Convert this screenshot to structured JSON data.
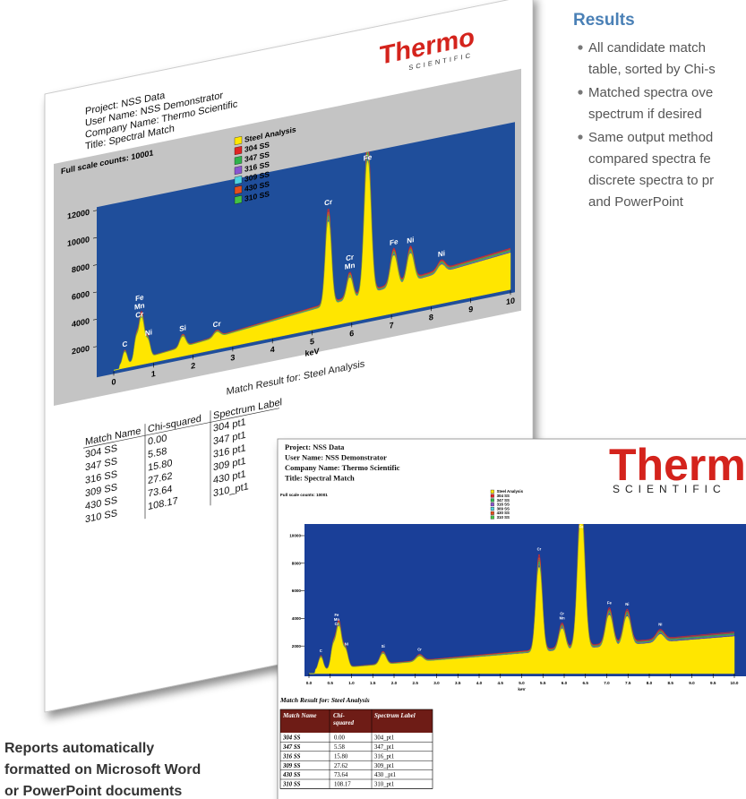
{
  "results": {
    "title": "Results",
    "bullets": [
      [
        "All candidate match",
        "table, sorted by Chi-s"
      ],
      [
        "Matched spectra ove",
        "spectrum if desired"
      ],
      [
        "Same output method",
        "compared spectra fe",
        "discrete spectra to pr",
        "and PowerPoint"
      ]
    ]
  },
  "caption": [
    "Reports automatically",
    "formatted on Microsoft Word",
    "or PowerPoint documents"
  ],
  "report_1": {
    "logo": "Thermo",
    "logo_sub": "SCIENTIFIC",
    "header": [
      "Project: NSS Data",
      "User Name: NSS Demonstrator",
      "Company Name: Thermo Scientific",
      "Title: Spectral Match"
    ],
    "chart": {
      "full_scale": "Full scale counts: 10001",
      "legend": [
        {
          "name": "Steel Analysis",
          "color": "#ffe600"
        },
        {
          "name": "304 SS",
          "color": "#e02424"
        },
        {
          "name": "347 SS",
          "color": "#2fb24c"
        },
        {
          "name": "316 SS",
          "color": "#8a55d0"
        },
        {
          "name": "309 SS",
          "color": "#4fd2e0"
        },
        {
          "name": "430 SS",
          "color": "#e4501e"
        },
        {
          "name": "310 SS",
          "color": "#44c244"
        }
      ],
      "yticks": [
        2000,
        4000,
        6000,
        8000,
        10000,
        12000
      ],
      "xticks": [
        0,
        1,
        2,
        3,
        4,
        5,
        6,
        7,
        8,
        9,
        10
      ],
      "xlabel": "keV",
      "peak_labels": [
        "C",
        "Cr",
        "Mn",
        "Fe",
        "Ni",
        "Si",
        "Cr",
        "Cr",
        "Cr",
        "Mn",
        "Fe",
        "Fe",
        "Ni",
        "Ni"
      ]
    },
    "match_title": "Match Result for: Steel Analysis",
    "table": {
      "columns": [
        "Match Name",
        "Chi-squared",
        "Spectrum Label"
      ],
      "rows": [
        [
          "304 SS",
          "0.00",
          "304 pt1"
        ],
        [
          "347 SS",
          "5.58",
          "347 pt1"
        ],
        [
          "316 SS",
          "15.80",
          "316 pt1"
        ],
        [
          "309 SS",
          "27.62",
          "309 pt1"
        ],
        [
          "430 SS",
          "73.64",
          "430 pt1"
        ],
        [
          "310 SS",
          "108.17",
          "310_pt1"
        ]
      ]
    }
  },
  "report_2": {
    "logo": "Thermo",
    "logo_sub": "SCIENTIFIC",
    "header": [
      "Project: NSS Data",
      "User Name: NSS Demonstrator",
      "Company Name: Thermo Scientific",
      "Title: Spectral Match"
    ],
    "chart": {
      "full_scale": "Full scale counts: 10001",
      "legend": [
        {
          "name": "Steel Analysis",
          "color": "#ffe600"
        },
        {
          "name": "304 SS",
          "color": "#e02424"
        },
        {
          "name": "347 SS",
          "color": "#2fb24c"
        },
        {
          "name": "316 SS",
          "color": "#8a55d0"
        },
        {
          "name": "309 SS",
          "color": "#4fd2e0"
        },
        {
          "name": "430 SS",
          "color": "#e4501e"
        },
        {
          "name": "310 SS",
          "color": "#44c244"
        }
      ],
      "yticks": [
        2000,
        4000,
        6000,
        8000,
        10000
      ],
      "xticks": [
        {
          "value": 0,
          "label": "0.0"
        },
        0.5,
        {
          "value": 1,
          "label": "1.0"
        },
        1.5,
        {
          "value": 2,
          "label": "2.0"
        },
        2.5,
        {
          "value": 3,
          "label": "3.0"
        },
        3.5,
        {
          "value": 4,
          "label": "4.0"
        },
        4.5,
        {
          "value": 5,
          "label": "5.0"
        },
        5.5,
        {
          "value": 6,
          "label": "6.0"
        },
        6.5,
        {
          "value": 7,
          "label": "7.0"
        },
        7.5,
        {
          "value": 8,
          "label": "8.0"
        },
        8.5,
        {
          "value": 9,
          "label": "9.0"
        },
        9.5,
        {
          "value": 10,
          "label": "10.0"
        }
      ],
      "xlabel": "keV",
      "peak_labels": [
        "C",
        "Cr",
        "Mn",
        "Fe",
        "Ni",
        "Si",
        "Cr",
        "Cr",
        "Cr",
        "Mn",
        "Fe",
        "Fe",
        "Ni",
        "Ni"
      ]
    },
    "match_title": "Match Result for: Steel Analysis",
    "table": {
      "columns": [
        "Match Name",
        [
          "Chi-",
          "squared"
        ],
        "Spectrum Label"
      ],
      "rows": [
        [
          "304 SS",
          "0.00",
          "304_pt1"
        ],
        [
          "347 SS",
          "5.58",
          "347_pt1"
        ],
        [
          "316 SS",
          "15.80",
          "316_pt1"
        ],
        [
          "309 SS",
          "27.62",
          "309_pt1"
        ],
        [
          "430 SS",
          "73.64",
          "430 _pt1"
        ],
        [
          "310 SS",
          "108.17",
          "310_pt1"
        ]
      ]
    }
  }
}
